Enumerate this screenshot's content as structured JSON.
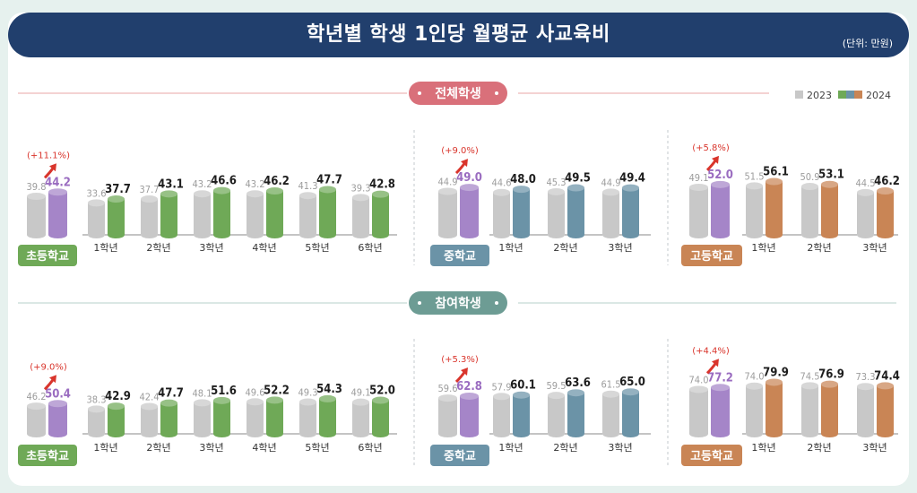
{
  "title": "학년별 학생 1인당 월평균 사교육비",
  "unit_note": "(단위: 만원)",
  "legend": [
    "2023",
    "2024"
  ],
  "colors": {
    "y2023": "#c8c8c8",
    "elementary": "#6fa957",
    "middle": "#6b93a7",
    "high": "#c98555",
    "average": "#a585c8",
    "section_all": "#d9707a",
    "section_participant": "#6d9c94",
    "header": "#213f6d"
  },
  "chart_data": [
    {
      "section": "전체학생",
      "groups": [
        {
          "school": "초등학교",
          "color_key": "elementary",
          "avg": {
            "y2023": 39.8,
            "y2024": 44.2,
            "change": "(+11.1%)"
          },
          "categories": [
            "1학년",
            "2학년",
            "3학년",
            "4학년",
            "5학년",
            "6학년"
          ],
          "y2023": [
            33.6,
            37.7,
            43.2,
            43.2,
            41.3,
            39.3
          ],
          "y2024": [
            37.7,
            43.1,
            46.6,
            46.2,
            47.7,
            42.8
          ]
        },
        {
          "school": "중학교",
          "color_key": "middle",
          "avg": {
            "y2023": 44.9,
            "y2024": 49.0,
            "change": "(+9.0%)"
          },
          "categories": [
            "1학년",
            "2학년",
            "3학년"
          ],
          "y2023": [
            44.6,
            45.3,
            44.9
          ],
          "y2024": [
            48.0,
            49.5,
            49.4
          ]
        },
        {
          "school": "고등학교",
          "color_key": "high",
          "avg": {
            "y2023": 49.1,
            "y2024": 52.0,
            "change": "(+5.8%)"
          },
          "categories": [
            "1학년",
            "2학년",
            "3학년"
          ],
          "y2023": [
            51.5,
            50.9,
            44.5
          ],
          "y2024": [
            56.1,
            53.1,
            46.2
          ]
        }
      ]
    },
    {
      "section": "참여학생",
      "groups": [
        {
          "school": "초등학교",
          "color_key": "elementary",
          "avg": {
            "y2023": 46.2,
            "y2024": 50.4,
            "change": "(+9.0%)"
          },
          "categories": [
            "1학년",
            "2학년",
            "3학년",
            "4학년",
            "5학년",
            "6학년"
          ],
          "y2023": [
            38.3,
            42.4,
            48.1,
            49.6,
            49.3,
            49.1
          ],
          "y2024": [
            42.9,
            47.7,
            51.6,
            52.2,
            54.3,
            52.0
          ]
        },
        {
          "school": "중학교",
          "color_key": "middle",
          "avg": {
            "y2023": 59.6,
            "y2024": 62.8,
            "change": "(+5.3%)"
          },
          "categories": [
            "1학년",
            "2학년",
            "3학년"
          ],
          "y2023": [
            57.9,
            59.5,
            61.5
          ],
          "y2024": [
            60.1,
            63.6,
            65.0
          ]
        },
        {
          "school": "고등학교",
          "color_key": "high",
          "avg": {
            "y2023": 74.0,
            "y2024": 77.2,
            "change": "(+4.4%)"
          },
          "categories": [
            "1학년",
            "2학년",
            "3학년"
          ],
          "y2023": [
            74.0,
            74.5,
            73.3
          ],
          "y2024": [
            79.9,
            76.9,
            74.4
          ]
        }
      ]
    }
  ]
}
